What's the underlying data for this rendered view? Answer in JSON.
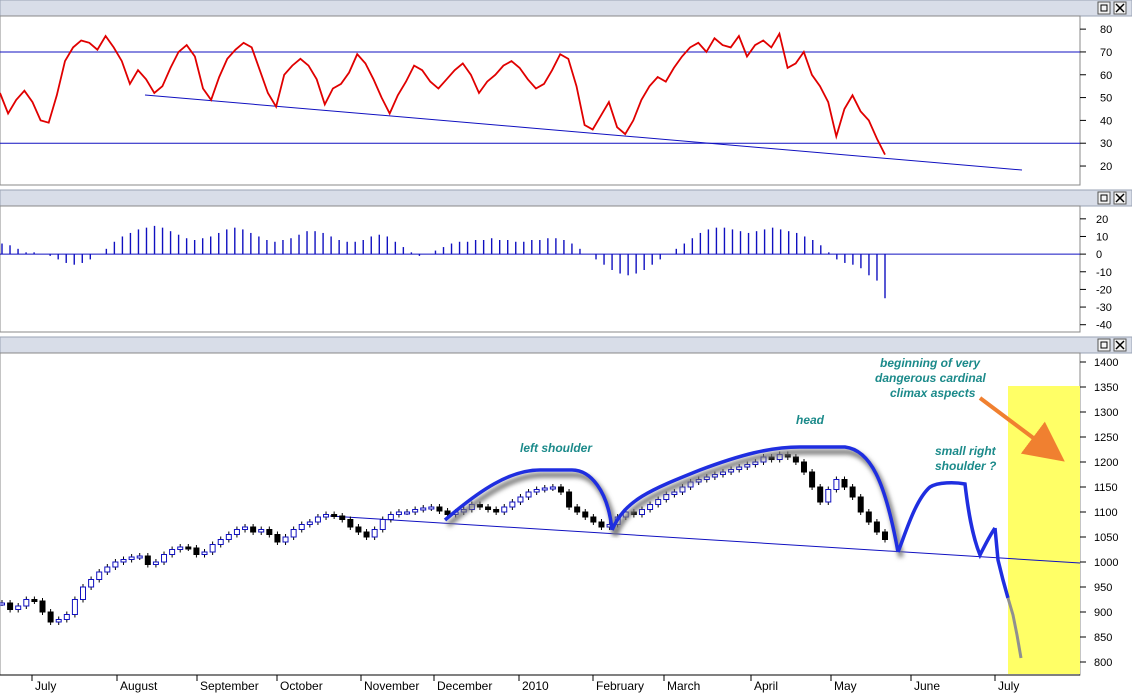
{
  "chart_data": [
    {
      "type": "line",
      "panel": "rsi",
      "y_ticks": [
        20,
        30,
        40,
        50,
        60,
        70,
        80
      ],
      "ylim": [
        13,
        84
      ],
      "reference_lines": [
        70,
        30
      ],
      "series": [
        {
          "values": [
            52,
            43,
            49,
            53,
            48,
            40,
            39,
            51,
            66,
            72,
            75,
            74,
            71,
            77,
            72,
            66,
            56,
            62,
            58,
            52,
            55,
            63,
            70,
            73,
            68,
            54,
            49,
            59,
            67,
            71,
            74,
            72,
            62,
            52,
            46,
            60,
            64,
            67,
            64,
            58,
            47,
            54,
            56,
            61,
            69,
            65,
            58,
            50,
            43,
            51,
            57,
            64,
            62,
            57,
            54,
            58,
            62,
            65,
            60,
            52,
            57,
            60,
            64,
            66,
            63,
            58,
            54,
            56,
            62,
            69,
            67,
            55,
            38,
            36,
            42,
            48,
            37,
            34,
            40,
            49,
            55,
            59,
            57,
            63,
            68,
            72,
            74,
            70,
            76,
            73,
            72,
            77,
            68,
            73,
            75,
            72,
            78,
            63,
            65,
            70,
            60,
            55,
            48,
            33,
            45,
            51,
            44,
            40,
            32,
            25
          ]
        }
      ]
    },
    {
      "type": "bar",
      "panel": "histogram",
      "y_ticks": [
        -40,
        -30,
        -20,
        -10,
        0,
        10,
        20
      ],
      "ylim": [
        -43,
        25
      ],
      "values": [
        6,
        5,
        3,
        1,
        1,
        0,
        -1,
        -3,
        -5,
        -6,
        -5,
        -3,
        0,
        3,
        7,
        10,
        12,
        14,
        15,
        16,
        15,
        13,
        11,
        9,
        8,
        9,
        10,
        12,
        14,
        15,
        14,
        12,
        10,
        8,
        7,
        8,
        9,
        11,
        13,
        13,
        12,
        10,
        8,
        7,
        7,
        8,
        10,
        11,
        10,
        7,
        4,
        1,
        -1,
        0,
        2,
        4,
        6,
        7,
        7,
        8,
        8,
        9,
        8,
        8,
        7,
        7,
        8,
        8,
        9,
        9,
        8,
        6,
        3,
        0,
        -3,
        -6,
        -9,
        -11,
        -12,
        -11,
        -9,
        -6,
        -3,
        0,
        3,
        6,
        9,
        12,
        14,
        15,
        15,
        14,
        13,
        12,
        13,
        14,
        15,
        14,
        13,
        12,
        10,
        8,
        5,
        1,
        -3,
        -5,
        -6,
        -8,
        -12,
        -15,
        -25
      ]
    },
    {
      "type": "line",
      "panel": "price",
      "x_month_labels": [
        "July",
        "August",
        "September",
        "October",
        "November",
        "December",
        "2010",
        "February",
        "March",
        "April",
        "May",
        "June",
        "July"
      ],
      "y_ticks": [
        800,
        850,
        900,
        950,
        1000,
        1050,
        1100,
        1150,
        1200,
        1250,
        1300,
        1350,
        1400
      ],
      "ylim": [
        780,
        1410
      ],
      "series": [
        {
          "values": [
            918,
            905,
            912,
            925,
            922,
            900,
            880,
            885,
            895,
            925,
            950,
            965,
            980,
            990,
            1000,
            1005,
            1010,
            1012,
            995,
            1000,
            1015,
            1025,
            1030,
            1028,
            1015,
            1020,
            1035,
            1045,
            1055,
            1065,
            1070,
            1060,
            1065,
            1055,
            1040,
            1050,
            1065,
            1075,
            1080,
            1090,
            1095,
            1092,
            1085,
            1070,
            1060,
            1050,
            1065,
            1085,
            1095,
            1100,
            1100,
            1105,
            1108,
            1110,
            1102,
            1095,
            1100,
            1105,
            1115,
            1110,
            1105,
            1100,
            1110,
            1120,
            1130,
            1140,
            1145,
            1148,
            1150,
            1140,
            1110,
            1100,
            1090,
            1080,
            1070,
            1075,
            1090,
            1100,
            1095,
            1105,
            1115,
            1125,
            1135,
            1140,
            1150,
            1160,
            1165,
            1170,
            1175,
            1180,
            1185,
            1190,
            1195,
            1200,
            1210,
            1205,
            1215,
            1210,
            1200,
            1180,
            1150,
            1120,
            1145,
            1165,
            1150,
            1130,
            1100,
            1080,
            1060,
            1045
          ]
        },
        {
          "values": [
            1045,
            1070,
            1110,
            1150,
            1160,
            1165,
            1165,
            1160,
            1150,
            1160,
            1155,
            1120,
            1060,
            1025,
            1060,
            1070,
            1020,
            995,
            950,
            900,
            860,
            830,
            810
          ]
        }
      ],
      "annotations": [
        "left shoulder",
        "head",
        "small right shoulder ?",
        "beginning of very dangerous cardinal climax aspects"
      ]
    }
  ],
  "annotations": {
    "left_shoulder": "left shoulder",
    "head": "head",
    "right_shoulder_1": "small right",
    "right_shoulder_2": "shoulder ?",
    "climax_1": "beginning of very",
    "climax_2": "dangerous cardinal",
    "climax_3": "climax aspects"
  },
  "colors": {
    "rsi_line": "#e00000",
    "trend_line": "#1010c0",
    "hand_drawn": "#1f2ee0",
    "projection": "#909090",
    "highlight": "#ffff66",
    "arrow": "#f08030",
    "annotation_text": "#1b8a8a",
    "panel_header": "#d8dde8"
  }
}
